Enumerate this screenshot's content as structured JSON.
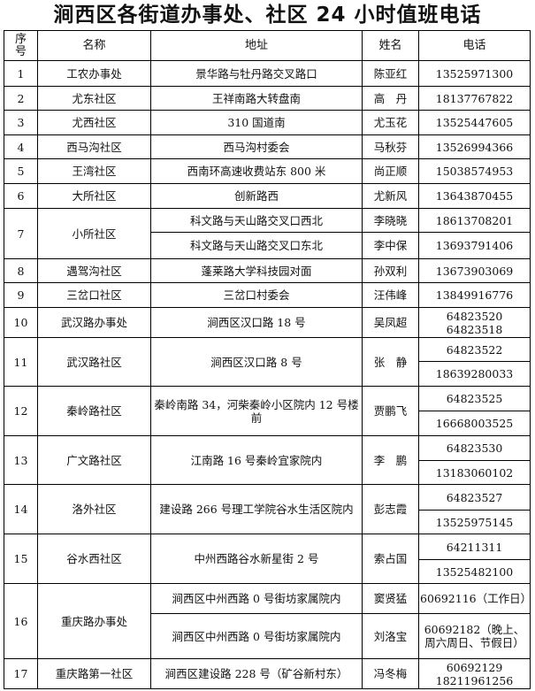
{
  "title": "涧西区各街道办事处、社区 24 小时值班电话",
  "headers": {
    "no": "序号",
    "name": "名称",
    "address": "地址",
    "person": "姓名",
    "phone": "电话"
  },
  "rows": [
    {
      "no": "1",
      "name": "工农办事处",
      "address": "景华路与牡丹路交叉路口",
      "person": "陈亚红",
      "phones": [
        "13525971300"
      ]
    },
    {
      "no": "2",
      "name": "尤东社区",
      "address": "王祥南路大转盘南",
      "person": "高　丹",
      "phones": [
        "18137767822"
      ]
    },
    {
      "no": "3",
      "name": "尤西社区",
      "address": "310 国道南",
      "person": "尤玉花",
      "phones": [
        "13525447605"
      ]
    },
    {
      "no": "4",
      "name": "西马沟社区",
      "address": "西马沟村委会",
      "person": "马秋芬",
      "phones": [
        "13526994366"
      ]
    },
    {
      "no": "5",
      "name": "王湾社区",
      "address": "西南环高速收费站东 800 米",
      "person": "尚正顺",
      "phones": [
        "15038574953"
      ]
    },
    {
      "no": "6",
      "name": "大所社区",
      "address": "创新路西",
      "person": "尤新风",
      "phones": [
        "13643870455"
      ]
    },
    {
      "no": "7",
      "name": "小所社区",
      "entries": [
        {
          "address": "科文路与天山路交叉口西北",
          "person": "李晓晓",
          "phone": "18613708201"
        },
        {
          "address": "科文路与天山路交叉口东北",
          "person": "李中保",
          "phone": "13693791406"
        }
      ]
    },
    {
      "no": "8",
      "name": "遇驾沟社区",
      "address": "蓬莱路大学科技园对面",
      "person": "孙双利",
      "phones": [
        "13673903069"
      ]
    },
    {
      "no": "9",
      "name": "三岔口社区",
      "address": "三岔口村委会",
      "person": "汪伟峰",
      "phones": [
        "13849916776"
      ]
    },
    {
      "no": "10",
      "name": "武汉路办事处",
      "address": "涧西区汉口路 18 号",
      "person": "吴凤超",
      "phones": [
        "64823520",
        "64823518"
      ]
    },
    {
      "no": "11",
      "name": "武汉路社区",
      "address": "涧西区汉口路 8 号",
      "person": "张　静",
      "phones": [
        "64823522",
        "18639280033"
      ]
    },
    {
      "no": "12",
      "name": "秦岭路社区",
      "address": "秦岭南路 34，河柴秦岭小区院内 12 号楼前",
      "person": "贾鹏飞",
      "phones": [
        "64823525",
        "16668003525"
      ]
    },
    {
      "no": "13",
      "name": "广文路社区",
      "address": "江南路 16 号秦岭宜家院内",
      "person": "李　鹏",
      "phones": [
        "64823530",
        "13183060102"
      ]
    },
    {
      "no": "14",
      "name": "洛外社区",
      "address": "建设路 266 号理工学院谷水生活区院内",
      "person": "彭志霞",
      "phones": [
        "64823527",
        "13525975145"
      ]
    },
    {
      "no": "15",
      "name": "谷水西社区",
      "address": "中州西路谷水新星街 2 号",
      "person": "索占国",
      "phones": [
        "64211311",
        "13525482100"
      ]
    },
    {
      "no": "16",
      "name": "重庆路办事处",
      "entries": [
        {
          "address": "涧西区中州西路 0 号街坊家属院内",
          "person": "窦贤猛",
          "phone": "60692116（工作日）"
        },
        {
          "address": "涧西区中州西路 0 号街坊家属院内",
          "person": "刘洛宝",
          "phone": "60692182（晚上、周六周日、节假日）"
        }
      ]
    },
    {
      "no": "17",
      "name": "重庆路第一社区",
      "address": "涧西区建设路 228 号（矿谷新村东）",
      "person": "冯冬梅",
      "phones": [
        "60692129",
        "18211961256"
      ]
    }
  ]
}
